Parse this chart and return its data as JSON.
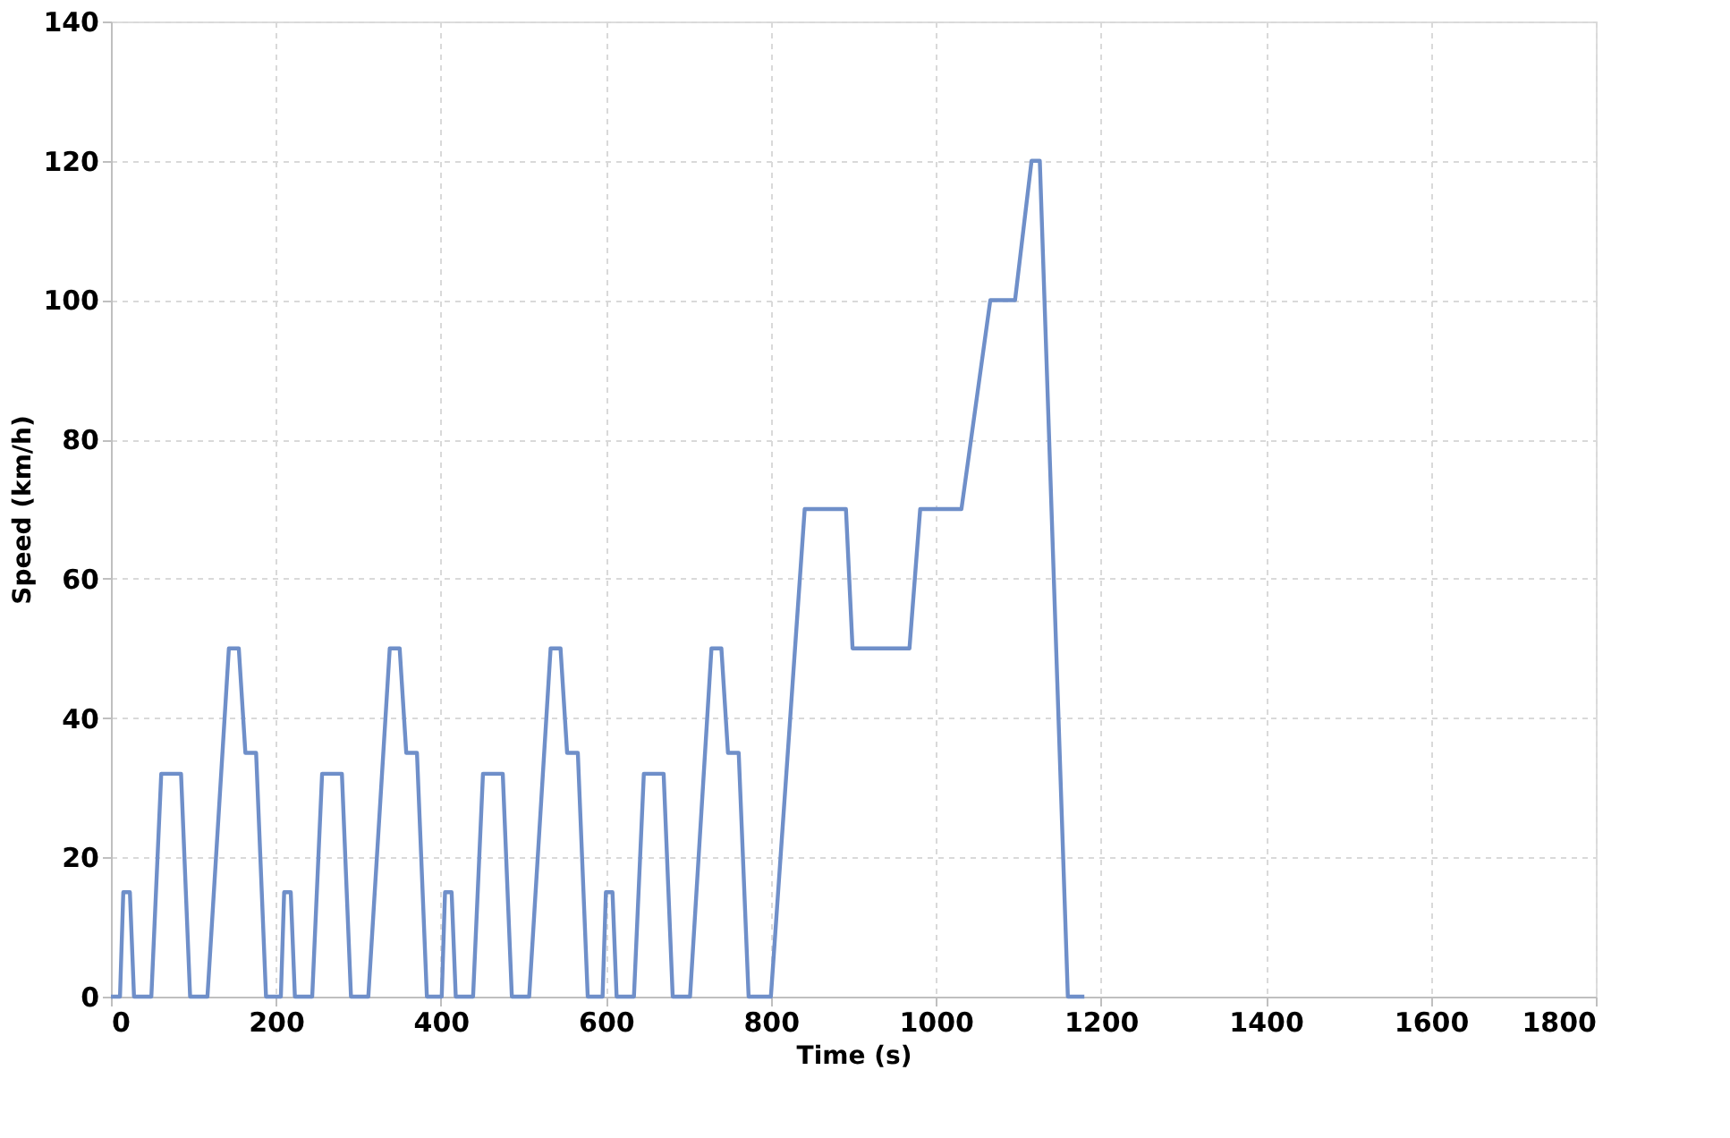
{
  "chart_data": {
    "type": "line",
    "xlabel": "Time (s)",
    "ylabel": "Speed (km/h)",
    "xlim": [
      0,
      1800
    ],
    "xticks": [
      0,
      200,
      400,
      600,
      800,
      1000,
      1200,
      1400,
      1600,
      1800
    ],
    "ylim": [
      0,
      140
    ],
    "yticks": [
      0,
      20,
      40,
      60,
      80,
      100,
      120,
      140
    ],
    "grid": true,
    "line_style": "solid",
    "series": [
      {
        "color": "#6f8fc9",
        "x": [
          0,
          11,
          15,
          23,
          28,
          49,
          61,
          85,
          96,
          117,
          143,
          155,
          163,
          176,
          188,
          195,
          206,
          210,
          218,
          223,
          244,
          256,
          280,
          291,
          312,
          338,
          350,
          358,
          371,
          383,
          390,
          401,
          405,
          413,
          418,
          439,
          451,
          475,
          486,
          507,
          533,
          545,
          553,
          566,
          578,
          585,
          596,
          600,
          608,
          613,
          634,
          646,
          670,
          681,
          702,
          728,
          740,
          748,
          761,
          773,
          800,
          841,
          891,
          899,
          968,
          981,
          1031,
          1066,
          1096,
          1116,
          1126,
          1160,
          1180
        ],
        "values": [
          0,
          0,
          15,
          15,
          0,
          0,
          32,
          32,
          0,
          0,
          50,
          50,
          35,
          35,
          0,
          0,
          0,
          15,
          15,
          0,
          0,
          32,
          32,
          0,
          0,
          50,
          50,
          35,
          35,
          0,
          0,
          0,
          15,
          15,
          0,
          0,
          32,
          32,
          0,
          0,
          50,
          50,
          35,
          35,
          0,
          0,
          0,
          15,
          15,
          0,
          0,
          32,
          32,
          0,
          0,
          50,
          50,
          35,
          35,
          0,
          0,
          70,
          70,
          50,
          50,
          70,
          70,
          100,
          100,
          120,
          120,
          0,
          0
        ]
      }
    ]
  }
}
